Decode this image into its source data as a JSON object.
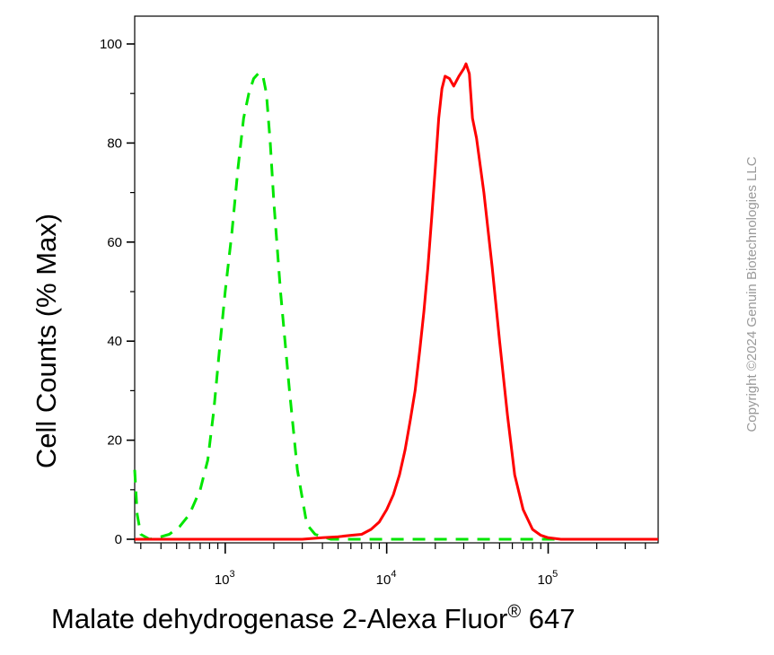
{
  "chart_data": {
    "type": "line",
    "title": "",
    "xlabel": "Malate dehydrogenase 2-Alexa Fluor",
    "xlabel_superscript": "®",
    "xlabel_suffix": " 647",
    "ylabel": "Cell Counts (% Max)",
    "x_scale": "log",
    "xlim": [
      275,
      480000
    ],
    "ylim": [
      0,
      105
    ],
    "y_ticks": [
      0,
      20,
      40,
      60,
      80,
      100
    ],
    "x_ticks": [
      {
        "value": 1000,
        "base": "10",
        "exp": "3"
      },
      {
        "value": 10000,
        "base": "10",
        "exp": "4"
      },
      {
        "value": 100000,
        "base": "10",
        "exp": "5"
      }
    ],
    "grid": false,
    "legend": "none",
    "series": [
      {
        "color": "#00e600",
        "style": "dashed",
        "points": [
          [
            275,
            14
          ],
          [
            285,
            5
          ],
          [
            300,
            1
          ],
          [
            340,
            0
          ],
          [
            400,
            0.5
          ],
          [
            450,
            1
          ],
          [
            520,
            2.5
          ],
          [
            600,
            5
          ],
          [
            700,
            10
          ],
          [
            780,
            16
          ],
          [
            850,
            26
          ],
          [
            920,
            38
          ],
          [
            1000,
            50
          ],
          [
            1100,
            62
          ],
          [
            1200,
            75
          ],
          [
            1300,
            85
          ],
          [
            1400,
            90
          ],
          [
            1500,
            93
          ],
          [
            1600,
            94
          ],
          [
            1700,
            94
          ],
          [
            1800,
            90
          ],
          [
            1900,
            80
          ],
          [
            2000,
            68
          ],
          [
            2200,
            50
          ],
          [
            2500,
            30
          ],
          [
            2800,
            14
          ],
          [
            3200,
            3
          ],
          [
            3600,
            1
          ],
          [
            4500,
            0
          ],
          [
            15000,
            0
          ],
          [
            40000,
            0
          ],
          [
            480000,
            0
          ]
        ]
      },
      {
        "color": "#ff0000",
        "style": "solid",
        "points": [
          [
            275,
            0
          ],
          [
            3000,
            0
          ],
          [
            4000,
            0.3
          ],
          [
            5000,
            0.5
          ],
          [
            6000,
            0.8
          ],
          [
            7000,
            1
          ],
          [
            8000,
            2
          ],
          [
            9000,
            3.5
          ],
          [
            10000,
            6
          ],
          [
            11000,
            9
          ],
          [
            12000,
            13
          ],
          [
            13000,
            18
          ],
          [
            14000,
            24
          ],
          [
            15000,
            30
          ],
          [
            16000,
            38
          ],
          [
            17000,
            46
          ],
          [
            18000,
            55
          ],
          [
            19000,
            65
          ],
          [
            20000,
            75
          ],
          [
            21000,
            85
          ],
          [
            22000,
            91
          ],
          [
            23000,
            93.5
          ],
          [
            24500,
            93
          ],
          [
            26000,
            91.5
          ],
          [
            28000,
            93.5
          ],
          [
            30000,
            95
          ],
          [
            31000,
            96
          ],
          [
            32500,
            94
          ],
          [
            34000,
            85
          ],
          [
            36000,
            81
          ],
          [
            40000,
            70
          ],
          [
            45000,
            55
          ],
          [
            50000,
            40
          ],
          [
            56000,
            25
          ],
          [
            62000,
            13
          ],
          [
            70000,
            6
          ],
          [
            80000,
            2
          ],
          [
            90000,
            0.8
          ],
          [
            100000,
            0.3
          ],
          [
            120000,
            0
          ],
          [
            480000,
            0
          ]
        ]
      }
    ]
  },
  "watermark": "Copyright ©2024 Genuin Biotechnologies LLC"
}
